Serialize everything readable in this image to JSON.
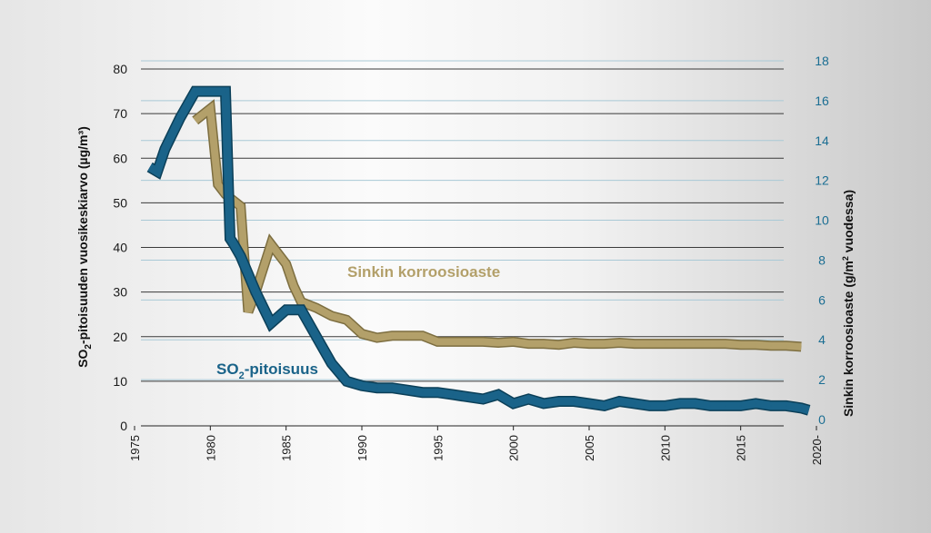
{
  "chart_data": {
    "type": "line",
    "title": "",
    "xlabel": "",
    "x_ticks": [
      "1975",
      "1980",
      "1985",
      "1990",
      "1995",
      "2000",
      "2005",
      "2010",
      "2015",
      "2020-"
    ],
    "xlim": [
      1975,
      2020
    ],
    "y_left": {
      "label_pre": "SO",
      "label_sub": "2",
      "label_post": "-pitoisuuden vuosikeskiarvo  (µg/m³)",
      "ylim": [
        0,
        80
      ],
      "ticks": [
        "0",
        "10",
        "20",
        "30",
        "40",
        "50",
        "60",
        "70",
        "80"
      ]
    },
    "y_right": {
      "label_pre": "Sinkin korroosioaste (g/m",
      "label_sup": "2",
      "label_post": " vuodessa)",
      "ylim": [
        0,
        18
      ],
      "ticks": [
        "0",
        "2",
        "4",
        "6",
        "8",
        "10",
        "12",
        "14",
        "16",
        "18"
      ]
    },
    "grid": true,
    "series": [
      {
        "name": "Sinkin korrosioaste",
        "label": "Sinkin korroosioaste",
        "axis": "right",
        "color": "#b3a06a",
        "x": [
          1979,
          1980,
          1980.5,
          1981,
          1982,
          1982.5,
          1983,
          1984,
          1985,
          1985.5,
          1986,
          1987,
          1988,
          1989,
          1990,
          1991,
          1992,
          1993,
          1994,
          1995,
          1996,
          1997,
          1998,
          1999,
          2000,
          2001,
          2002,
          2003,
          2004,
          2005,
          2006,
          2007,
          2008,
          2009,
          2010,
          2011,
          2012,
          2013,
          2014,
          2015,
          2016,
          2017,
          2018,
          2019
        ],
        "y": [
          15.0,
          15.6,
          11.8,
          11.3,
          10.7,
          5.4,
          6.4,
          8.8,
          7.8,
          6.7,
          5.9,
          5.6,
          5.2,
          5.0,
          4.3,
          4.1,
          4.2,
          4.2,
          4.2,
          3.9,
          3.9,
          3.9,
          3.9,
          3.85,
          3.9,
          3.8,
          3.8,
          3.75,
          3.85,
          3.8,
          3.8,
          3.85,
          3.8,
          3.8,
          3.8,
          3.8,
          3.8,
          3.8,
          3.8,
          3.75,
          3.75,
          3.7,
          3.7,
          3.65
        ]
      },
      {
        "name": "SO2-pitoisuus",
        "label_pre": "SO",
        "label_sub": "2",
        "label_post": "-pitoisuus",
        "axis": "left",
        "color": "#1a6389",
        "x": [
          1976,
          1976.5,
          1977,
          1978,
          1979,
          1980,
          1981,
          1981.3,
          1981.5,
          1982,
          1983,
          1984,
          1985,
          1986,
          1987,
          1988,
          1989,
          1990,
          1991,
          1992,
          1993,
          1994,
          1995,
          1996,
          1997,
          1998,
          1999,
          2000,
          2001,
          2002,
          2003,
          2004,
          2005,
          2006,
          2007,
          2008,
          2009,
          2010,
          2011,
          2012,
          2013,
          2014,
          2015,
          2016,
          2017,
          2018,
          2019,
          2019.5
        ],
        "y": [
          58,
          57,
          62,
          69,
          75,
          75,
          75,
          42,
          41,
          38,
          30,
          23,
          26,
          26,
          20,
          14,
          10,
          9,
          8.5,
          8.5,
          8,
          7.5,
          7.5,
          7,
          6.5,
          6,
          7,
          5,
          6,
          5,
          5.5,
          5.5,
          5,
          4.5,
          5.5,
          5,
          4.5,
          4.5,
          5,
          5,
          4.5,
          4.5,
          4.5,
          5,
          4.5,
          4.5,
          4,
          3.5
        ]
      }
    ]
  }
}
